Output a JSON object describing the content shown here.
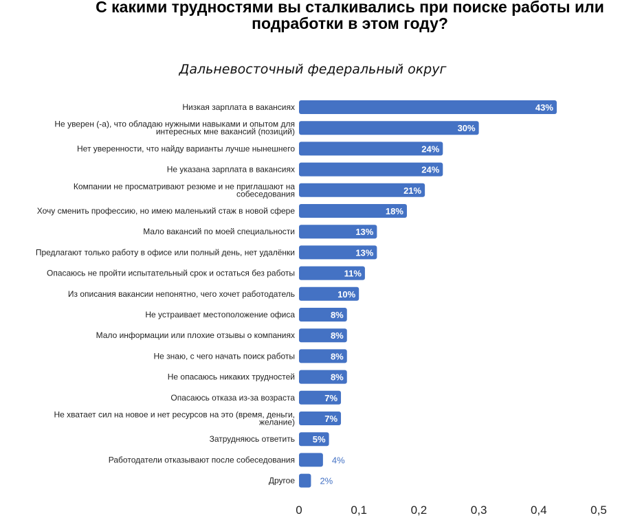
{
  "chart_data": {
    "type": "bar",
    "orientation": "horizontal",
    "title": "С какими трудностями вы сталкивались при поиске работы или\nподработки в этом году?",
    "subtitle": "Дальневосточный федеральный округ",
    "xlim": [
      0,
      0.5
    ],
    "xticks": [
      "0",
      "0,1",
      "0,2",
      "0,3",
      "0,4",
      "0,5"
    ],
    "grid": false,
    "bar_color": "#4472C4",
    "categories": [
      [
        "Низкая зарплата в вакансиях"
      ],
      [
        "Не уверен (-а), что обладаю нужными навыками и опытом для",
        "интересных мне вакансий (позиций)"
      ],
      [
        "Нет уверенности, что найду варианты лучше нынешнего"
      ],
      [
        "Не указана зарплата в вакансиях"
      ],
      [
        "Компании не просматривают резюме и не приглашают на",
        "собеседования"
      ],
      [
        "Хочу сменить профессию, но имею маленький стаж в новой сфере"
      ],
      [
        "Мало вакансий по моей специальности"
      ],
      [
        "Предлагают только работу в офисе или полный день, нет удалёнки"
      ],
      [
        "Опасаюсь не пройти испытательный срок и остаться без работы"
      ],
      [
        "Из описания вакансии непонятно, чего хочет работодатель"
      ],
      [
        "Не устраивает местоположение офиса"
      ],
      [
        "Мало информации или плохие отзывы о компаниях"
      ],
      [
        "Не знаю, с чего начать поиск работы"
      ],
      [
        "Не опасаюсь никаких трудностей"
      ],
      [
        "Опасаюсь отказа из-за возраста"
      ],
      [
        "Не хватает сил на новое и нет ресурсов на это (время, деньги,",
        "желание)"
      ],
      [
        "Затрудняюсь ответить"
      ],
      [
        "Работодатели отказывают после собеседования"
      ],
      [
        "Другое"
      ]
    ],
    "values": [
      0.43,
      0.3,
      0.24,
      0.24,
      0.21,
      0.18,
      0.13,
      0.13,
      0.11,
      0.1,
      0.08,
      0.08,
      0.08,
      0.08,
      0.07,
      0.07,
      0.05,
      0.04,
      0.02
    ],
    "labels": [
      "43%",
      "30%",
      "24%",
      "24%",
      "21%",
      "18%",
      "13%",
      "13%",
      "11%",
      "10%",
      "8%",
      "8%",
      "8%",
      "8%",
      "7%",
      "7%",
      "5%",
      "4%",
      "2%"
    ]
  }
}
